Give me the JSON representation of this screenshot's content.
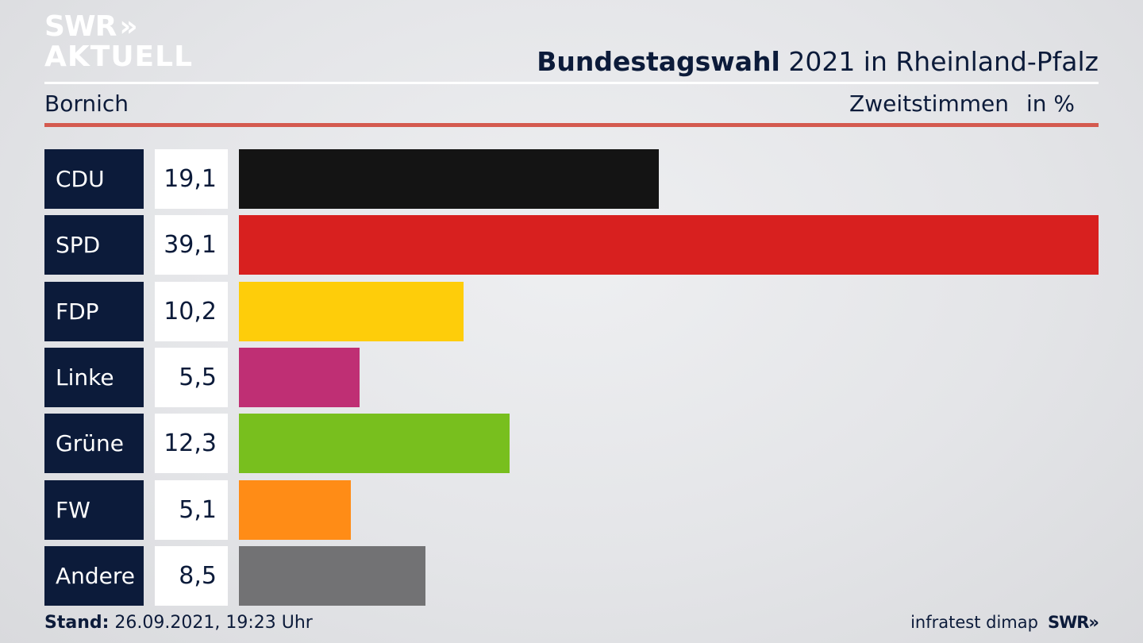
{
  "brand": {
    "logo_line1": "SWR",
    "logo_chevrons": "»",
    "logo_line2": "AKTUELL"
  },
  "header": {
    "title_bold": "Bundestagswahl",
    "title_rest": " 2021 in Rheinland-Pfalz",
    "region": "Bornich",
    "measure": "Zweitstimmen",
    "unit": "in %"
  },
  "chart_data": {
    "type": "bar",
    "orientation": "horizontal",
    "categories": [
      "CDU",
      "SPD",
      "FDP",
      "Linke",
      "Grüne",
      "FW",
      "Andere"
    ],
    "values": [
      19.1,
      39.1,
      10.2,
      5.5,
      12.3,
      5.1,
      8.5
    ],
    "value_labels": [
      "19,1",
      "39,1",
      "10,2",
      "5,5",
      "12,3",
      "5,1",
      "8,5"
    ],
    "colors": [
      "#141414",
      "#d8201f",
      "#fecd0a",
      "#bf2f74",
      "#78bf1e",
      "#ff8c16",
      "#727274"
    ],
    "xlim": [
      0,
      39.1
    ],
    "unit": "%"
  },
  "footer": {
    "stand_label": "Stand:",
    "stand_value": " 26.09.2021, 19:23 Uhr",
    "source": "infratest dimap",
    "brand": "SWR»"
  }
}
